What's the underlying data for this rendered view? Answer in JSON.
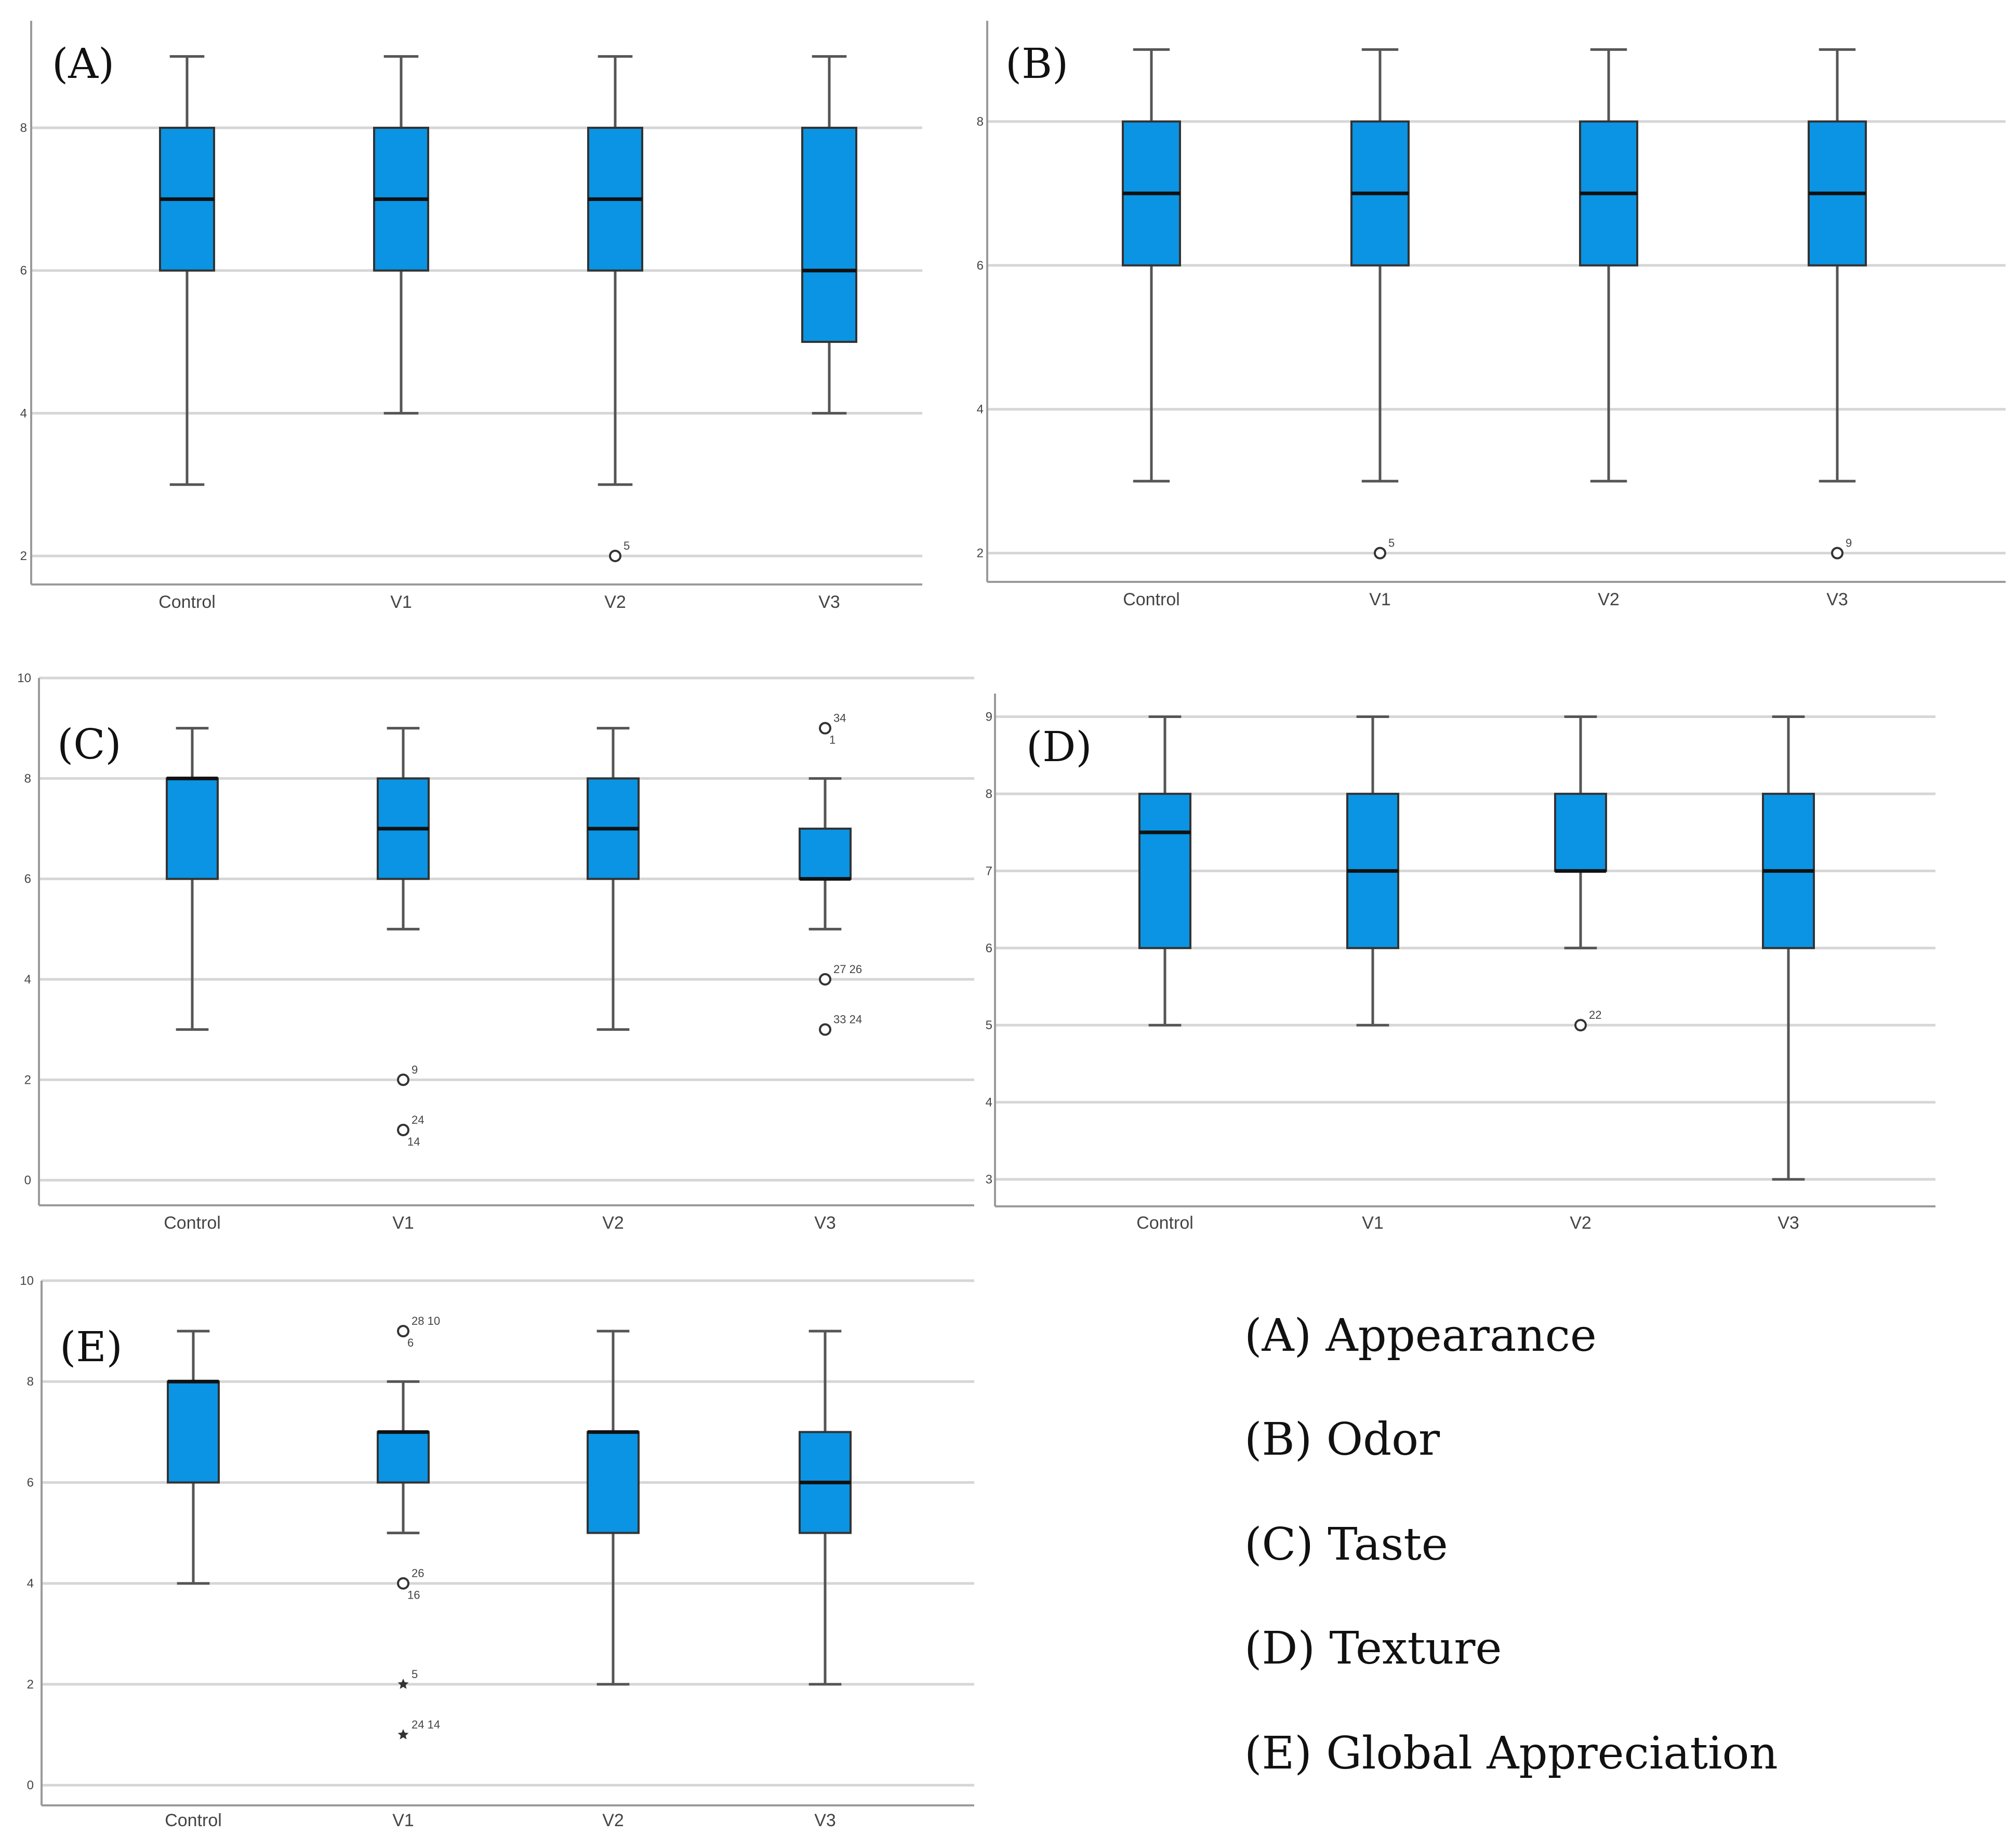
{
  "colors": {
    "box_fill": "#0A94E3",
    "box_stroke": "#333333",
    "median": "#111111",
    "whisker": "#555555",
    "grid": "#d6d6d6",
    "axis": "#9a9a9a",
    "outlier": "#333333",
    "tick_text": "#444444",
    "panel_label": "#111111"
  },
  "chart_data": [
    {
      "type": "boxplot",
      "panel_label": "(A)",
      "categories": [
        "Control",
        "V1",
        "V2",
        "V3"
      ],
      "ytick_labels": [
        "2",
        "4",
        "6",
        "8"
      ],
      "ylim": [
        1.6,
        9.5
      ],
      "boxes": [
        {
          "category": "Control",
          "whisker_low": 3,
          "q1": 6,
          "median": 7,
          "q3": 8,
          "whisker_high": 9
        },
        {
          "category": "V1",
          "whisker_low": 4,
          "q1": 6,
          "median": 7,
          "q3": 8,
          "whisker_high": 9
        },
        {
          "category": "V2",
          "whisker_low": 3,
          "q1": 6,
          "median": 7,
          "q3": 8,
          "whisker_high": 9
        },
        {
          "category": "V3",
          "whisker_low": 4,
          "q1": 5,
          "median": 6,
          "q3": 8,
          "whisker_high": 9
        }
      ],
      "outliers": [
        {
          "category": "V2",
          "value": 2,
          "label": "5",
          "marker": "circle"
        }
      ]
    },
    {
      "type": "boxplot",
      "panel_label": "(B)",
      "categories": [
        "Control",
        "V1",
        "V2",
        "V3"
      ],
      "ytick_labels": [
        "2",
        "4",
        "6",
        "8"
      ],
      "ylim": [
        1.6,
        9.4
      ],
      "boxes": [
        {
          "category": "Control",
          "whisker_low": 3,
          "q1": 6,
          "median": 7,
          "q3": 8,
          "whisker_high": 9
        },
        {
          "category": "V1",
          "whisker_low": 3,
          "q1": 6,
          "median": 7,
          "q3": 8,
          "whisker_high": 9
        },
        {
          "category": "V2",
          "whisker_low": 3,
          "q1": 6,
          "median": 7,
          "q3": 8,
          "whisker_high": 9
        },
        {
          "category": "V3",
          "whisker_low": 3,
          "q1": 6,
          "median": 7,
          "q3": 8,
          "whisker_high": 9
        }
      ],
      "outliers": [
        {
          "category": "V1",
          "value": 2,
          "label": "5",
          "marker": "circle"
        },
        {
          "category": "V3",
          "value": 2,
          "label": "9",
          "marker": "circle"
        }
      ]
    },
    {
      "type": "boxplot",
      "panel_label": "(C)",
      "categories": [
        "Control",
        "V1",
        "V2",
        "V3"
      ],
      "ytick_labels": [
        "0",
        "2",
        "4",
        "6",
        "8",
        "10"
      ],
      "ylim": [
        -0.5,
        10
      ],
      "boxes": [
        {
          "category": "Control",
          "whisker_low": 3,
          "q1": 6,
          "median": 8,
          "q3": 8,
          "whisker_high": 9
        },
        {
          "category": "V1",
          "whisker_low": 5,
          "q1": 6,
          "median": 7,
          "q3": 8,
          "whisker_high": 9
        },
        {
          "category": "V2",
          "whisker_low": 3,
          "q1": 6,
          "median": 7,
          "q3": 8,
          "whisker_high": 9
        },
        {
          "category": "V3",
          "whisker_low": 5,
          "q1": 6,
          "median": 6,
          "q3": 7,
          "whisker_high": 8
        }
      ],
      "outliers": [
        {
          "category": "V1",
          "value": 2,
          "label": "9",
          "marker": "circle"
        },
        {
          "category": "V1",
          "value": 1,
          "label": "24",
          "label2": "14",
          "marker": "circle"
        },
        {
          "category": "V3",
          "value": 9,
          "label": "34",
          "label2": "1",
          "marker": "circle"
        },
        {
          "category": "V3",
          "value": 4,
          "label": "27 26",
          "marker": "circle"
        },
        {
          "category": "V3",
          "value": 3,
          "label": "33 24",
          "marker": "circle"
        }
      ]
    },
    {
      "type": "boxplot",
      "panel_label": "(D)",
      "categories": [
        "Control",
        "V1",
        "V2",
        "V3"
      ],
      "ytick_labels": [
        "3",
        "4",
        "5",
        "6",
        "7",
        "8",
        "9"
      ],
      "ylim": [
        2.65,
        9.3
      ],
      "boxes": [
        {
          "category": "Control",
          "whisker_low": 5,
          "q1": 6,
          "median": 7.5,
          "q3": 8,
          "whisker_high": 9
        },
        {
          "category": "V1",
          "whisker_low": 5,
          "q1": 6,
          "median": 7,
          "q3": 8,
          "whisker_high": 9
        },
        {
          "category": "V2",
          "whisker_low": 6,
          "q1": 7,
          "median": 7,
          "q3": 8,
          "whisker_high": 9
        },
        {
          "category": "V3",
          "whisker_low": 3,
          "q1": 6,
          "median": 7,
          "q3": 8,
          "whisker_high": 9
        }
      ],
      "outliers": [
        {
          "category": "V2",
          "value": 5,
          "label": "22",
          "marker": "circle"
        }
      ]
    },
    {
      "type": "boxplot",
      "panel_label": "(E)",
      "categories": [
        "Control",
        "V1",
        "V2",
        "V3"
      ],
      "ytick_labels": [
        "0",
        "2",
        "4",
        "6",
        "8",
        "10"
      ],
      "ylim": [
        -0.4,
        10.0
      ],
      "boxes": [
        {
          "category": "Control",
          "whisker_low": 4,
          "q1": 6,
          "median": 8,
          "q3": 8,
          "whisker_high": 9
        },
        {
          "category": "V1",
          "whisker_low": 5,
          "q1": 6,
          "median": 7,
          "q3": 7,
          "whisker_high": 8
        },
        {
          "category": "V2",
          "whisker_low": 2,
          "q1": 5,
          "median": 7,
          "q3": 7,
          "whisker_high": 9
        },
        {
          "category": "V3",
          "whisker_low": 2,
          "q1": 5,
          "median": 6,
          "q3": 7,
          "whisker_high": 9
        }
      ],
      "outliers": [
        {
          "category": "V1",
          "value": 9,
          "label": "28 10",
          "label2": "6",
          "marker": "circle"
        },
        {
          "category": "V1",
          "value": 4,
          "label": "26",
          "label2": "16",
          "marker": "circle"
        },
        {
          "category": "V1",
          "value": 2,
          "label": "5",
          "marker": "star"
        },
        {
          "category": "V1",
          "value": 1,
          "label": "24 14",
          "marker": "star"
        }
      ]
    }
  ],
  "legend": [
    "(A) Appearance",
    "(B) Odor",
    "(C) Taste",
    "(D) Texture",
    "(E) Global Appreciation"
  ]
}
